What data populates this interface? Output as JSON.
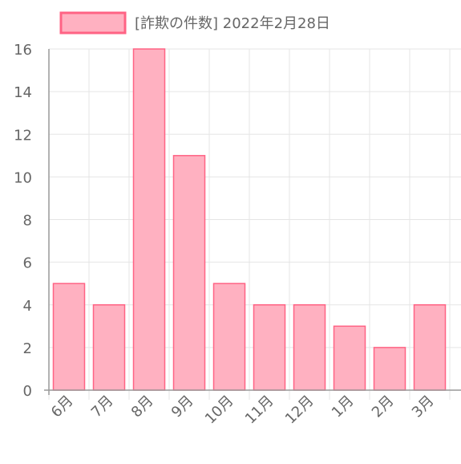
{
  "chart_data": {
    "type": "bar",
    "categories": [
      "6月",
      "7月",
      "8月",
      "9月",
      "10月",
      "11月",
      "12月",
      "1月",
      "2月",
      "3月"
    ],
    "series": [
      {
        "name": "[詐欺の件数] 2022年2月28日",
        "values": [
          5,
          4,
          16,
          11,
          5,
          4,
          4,
          3,
          2,
          4
        ]
      }
    ],
    "ylim": [
      0,
      16
    ],
    "yticks": [
      0,
      2,
      4,
      6,
      8,
      10,
      12,
      14,
      16
    ],
    "grid": true,
    "legend_position": "top",
    "colors": {
      "bar_fill": "#ffb1c1",
      "bar_stroke": "#ff6384",
      "grid": "#e5e5e5",
      "axis": "#999999",
      "text": "#666666"
    }
  }
}
